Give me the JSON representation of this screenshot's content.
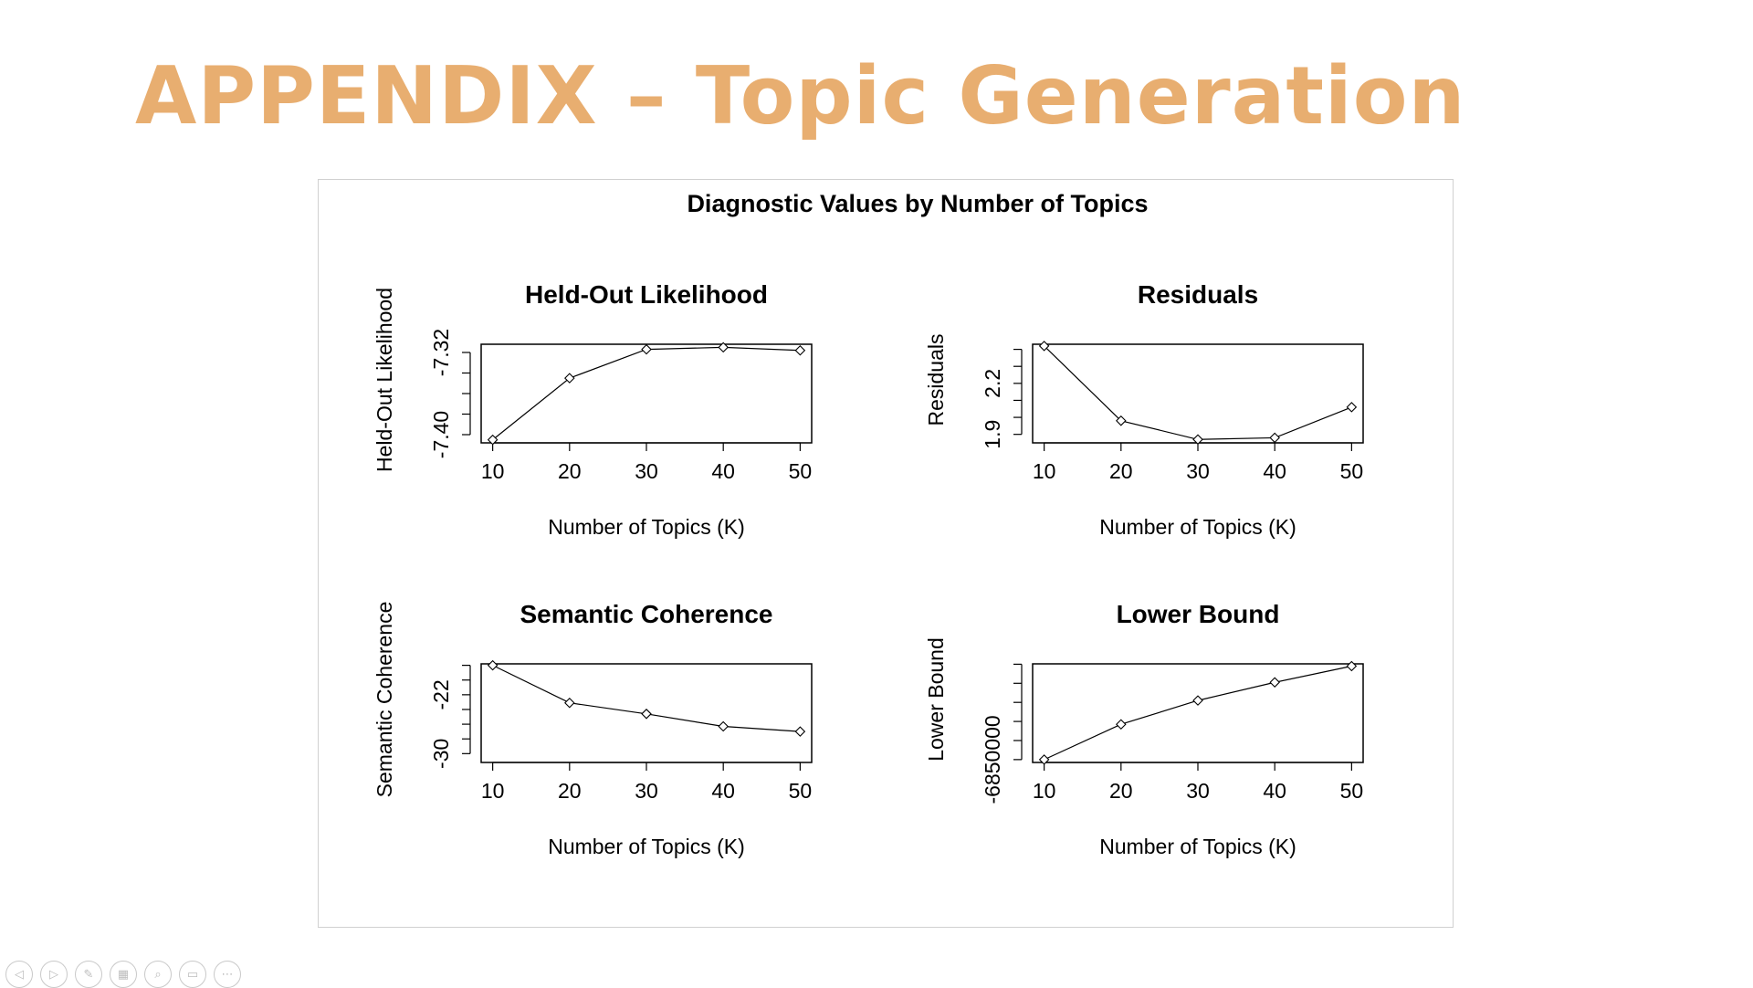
{
  "slide": {
    "title": "APPENDIX – Topic Generation",
    "title_color": "#E8AE70"
  },
  "chart_data": {
    "title": "Diagnostic Values by Number of Topics",
    "panels": [
      {
        "type": "line",
        "title": "Held-Out Likelihood",
        "xlabel": "Number of Topics (K)",
        "ylabel": "Held-Out Likelihood",
        "x": [
          10,
          20,
          30,
          40,
          50
        ],
        "y": [
          -7.405,
          -7.345,
          -7.317,
          -7.315,
          -7.318
        ],
        "xlim": [
          8.5,
          51.5
        ],
        "ylim": [
          -7.408,
          -7.312
        ],
        "yticks": [
          -7.4,
          -7.38,
          -7.36,
          -7.34,
          -7.32
        ],
        "ytick_labels": [
          "-7.40",
          "",
          "",
          "",
          "-7.32"
        ]
      },
      {
        "type": "line",
        "title": "Residuals",
        "xlabel": "Number of Topics (K)",
        "ylabel": "Residuals",
        "x": [
          10,
          20,
          30,
          40,
          50
        ],
        "y": [
          2.42,
          1.98,
          1.87,
          1.88,
          2.06
        ],
        "xlim": [
          8.5,
          51.5
        ],
        "ylim": [
          1.85,
          2.43
        ],
        "yticks": [
          1.9,
          2.0,
          2.1,
          2.2,
          2.3,
          2.4
        ],
        "ytick_labels": [
          "1.9",
          "",
          "",
          "2.2",
          "",
          ""
        ]
      },
      {
        "type": "line",
        "title": "Semantic Coherence",
        "xlabel": "Number of Topics (K)",
        "ylabel": "Semantic Coherence",
        "x": [
          10,
          20,
          30,
          40,
          50
        ],
        "y": [
          -18.0,
          -23.1,
          -24.6,
          -26.3,
          -27.0
        ],
        "xlim": [
          8.5,
          51.5
        ],
        "ylim": [
          -31.2,
          -17.8
        ],
        "yticks": [
          -30,
          -28,
          -26,
          -24,
          -22,
          -20,
          -18
        ],
        "ytick_labels": [
          "-30",
          "",
          "",
          "",
          "-22",
          "",
          ""
        ]
      },
      {
        "type": "line",
        "title": "Lower Bound",
        "xlabel": "Number of Topics (K)",
        "ylabel": "Lower Bound",
        "x": [
          10,
          20,
          30,
          40,
          50
        ],
        "y": [
          -6850000,
          -6831500,
          -6819000,
          -6809500,
          -6801000
        ],
        "xlim": [
          8.5,
          51.5
        ],
        "ylim": [
          -6851500,
          -6799800
        ],
        "yticks": [
          -6850000,
          -6840000,
          -6830000,
          -6820000,
          -6810000,
          -6800000
        ],
        "ytick_labels": [
          "-6850000",
          "",
          "",
          "",
          "",
          ""
        ]
      }
    ]
  },
  "toolbar": {
    "buttons": [
      {
        "icon": "previous-slide-icon",
        "glyph": "◁"
      },
      {
        "icon": "next-slide-icon",
        "glyph": "▷"
      },
      {
        "icon": "pen-icon",
        "glyph": "✎"
      },
      {
        "icon": "see-all-slides-icon",
        "glyph": "▦"
      },
      {
        "icon": "zoom-icon",
        "glyph": "⌕"
      },
      {
        "icon": "subtitles-icon",
        "glyph": "▭"
      },
      {
        "icon": "more-options-icon",
        "glyph": "⋯"
      }
    ]
  }
}
